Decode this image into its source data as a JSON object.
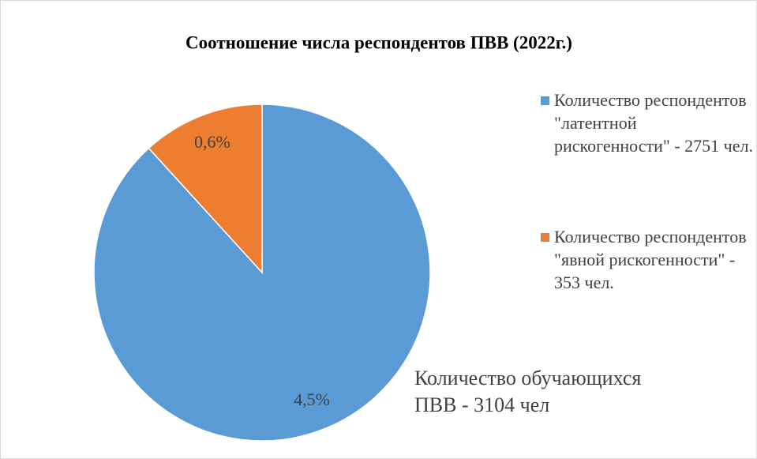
{
  "chart_data": {
    "type": "pie",
    "title": "Соотношение числа респондентов  ПВВ (2022г.)",
    "categories": [
      "Количество респондентов \"латентной рискогенности\" - 2751 чел.",
      "Количество респондентов \"явной рискогенности\" - 353 чел."
    ],
    "values": [
      4.5,
      0.6
    ],
    "value_labels": [
      "4,5%",
      "0,6%"
    ],
    "colors": [
      "#5b9bd5",
      "#ed7d31"
    ],
    "annotation": "Количество обучающихся ПВВ  - 3104 чел",
    "legend": "right"
  }
}
